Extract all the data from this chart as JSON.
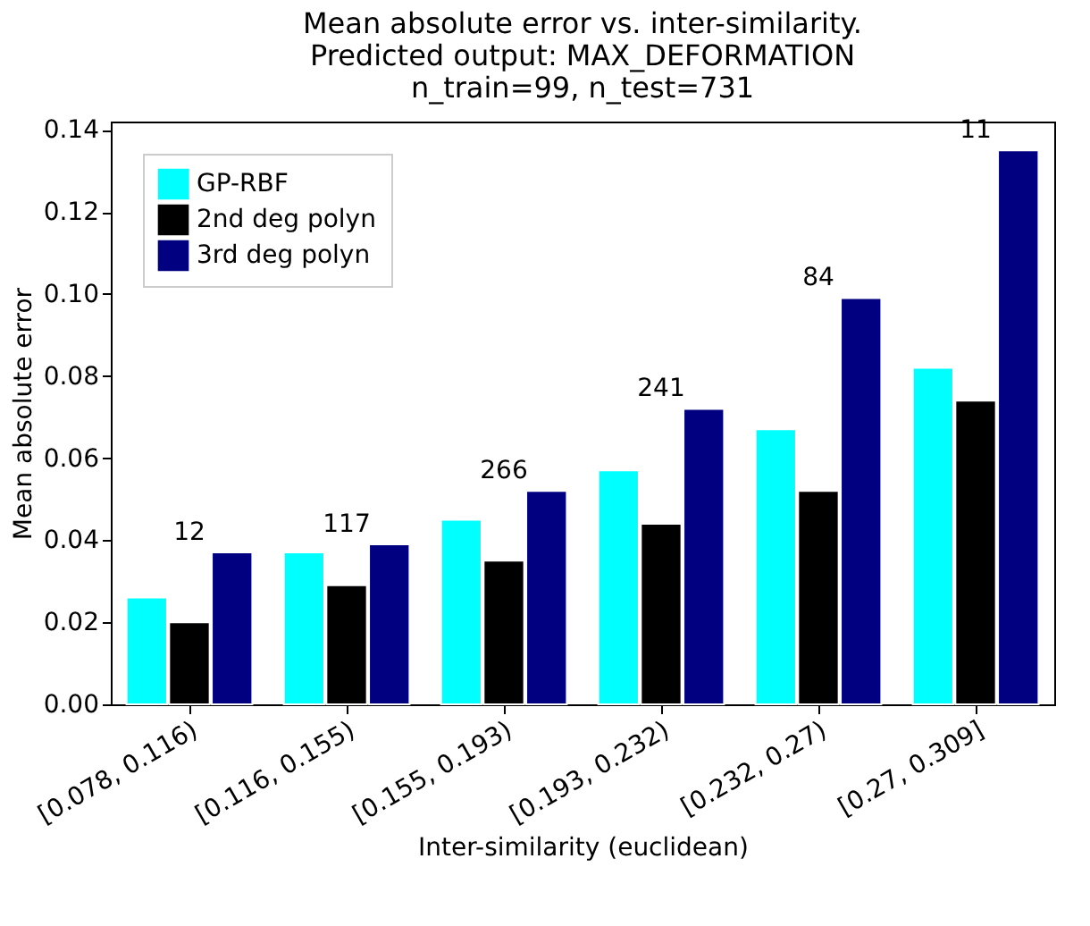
{
  "chart_data": {
    "type": "bar",
    "title": "Mean absolute error vs. inter-similarity.\nPredicted output: MAX_DEFORMATION\nn_train=99, n_test=731",
    "xlabel": "Inter-similarity (euclidean)",
    "ylabel": "Mean absolute error",
    "categories": [
      "[0.078, 0.116)",
      "[0.116, 0.155)",
      "[0.155, 0.193)",
      "[0.193, 0.232)",
      "[0.232, 0.27)",
      "[0.27, 0.309]"
    ],
    "series": [
      {
        "name": "GP-RBF",
        "color": "#00ffff",
        "values": [
          0.026,
          0.037,
          0.045,
          0.057,
          0.067,
          0.082
        ]
      },
      {
        "name": "2nd deg polyn",
        "color": "#000000",
        "values": [
          0.02,
          0.029,
          0.035,
          0.044,
          0.052,
          0.074
        ]
      },
      {
        "name": "3rd deg polyn",
        "color": "#000080",
        "values": [
          0.037,
          0.039,
          0.052,
          0.072,
          0.099,
          0.135
        ]
      }
    ],
    "ylim": [
      0,
      0.142
    ],
    "yticks": [
      {
        "value": 0,
        "label": "0.00"
      },
      {
        "value": 0.02,
        "label": "0.02"
      },
      {
        "value": 0.04,
        "label": "0.04"
      },
      {
        "value": 0.06,
        "label": "0.06"
      },
      {
        "value": 0.08,
        "label": "0.08"
      },
      {
        "value": 0.1,
        "label": "0.10"
      },
      {
        "value": 0.12,
        "label": "0.12"
      },
      {
        "value": 0.14,
        "label": "0.14"
      }
    ],
    "annotations": [
      "12",
      "117",
      "266",
      "241",
      "84",
      "11"
    ],
    "grid": false,
    "legend": "top left"
  }
}
